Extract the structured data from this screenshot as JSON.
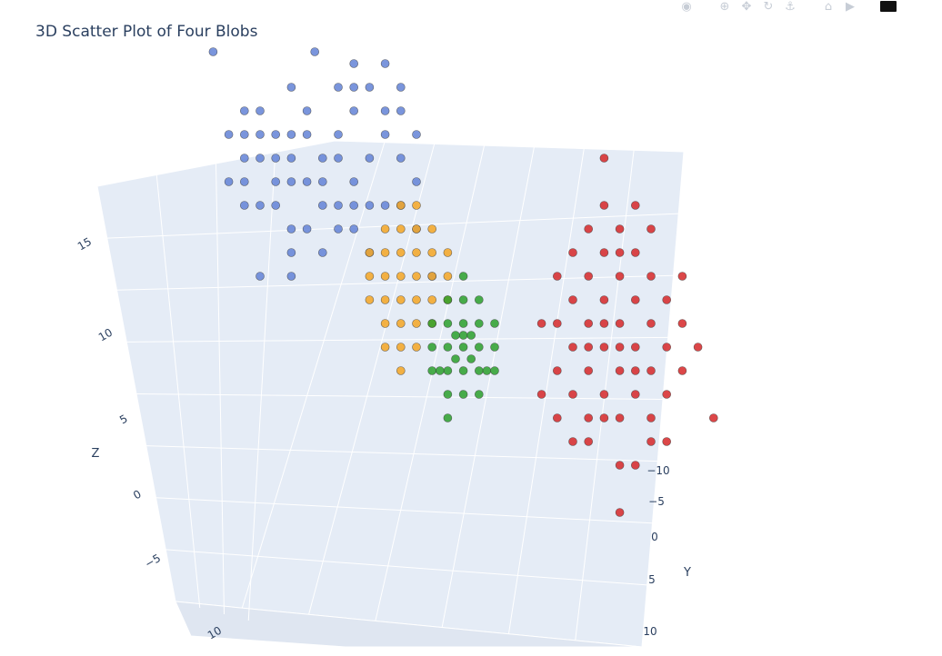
{
  "chart_data": {
    "type": "scatter3d",
    "title": "3D Scatter Plot of Four Blobs",
    "axes": {
      "x": {
        "label": "",
        "ticks": [
          "10"
        ]
      },
      "y": {
        "label": "Y",
        "ticks": [
          "−10",
          "−5",
          "0",
          "5",
          "10"
        ]
      },
      "z": {
        "label": "Z",
        "ticks": [
          "15",
          "10",
          "5",
          "0",
          "−5"
        ]
      }
    },
    "scene_background": "#e5ecf6",
    "series": [
      {
        "color": "#6382d6",
        "points": [
          [
            -1,
            14
          ],
          [
            -4,
            11
          ],
          [
            -2,
            12
          ],
          [
            -3,
            12
          ],
          [
            -6,
            15.5
          ],
          [
            -5,
            12
          ],
          [
            -3,
            13
          ],
          [
            -1,
            10
          ],
          [
            -2,
            11
          ],
          [
            -1,
            12
          ],
          [
            -4,
            13
          ],
          [
            -3,
            11
          ],
          [
            -2,
            9
          ],
          [
            -4,
            9
          ],
          [
            0,
            12
          ],
          [
            1,
            11
          ],
          [
            2,
            12
          ],
          [
            3,
            14
          ],
          [
            4,
            14
          ],
          [
            5,
            13
          ],
          [
            0,
            13
          ],
          [
            3,
            13
          ],
          [
            4,
            11
          ],
          [
            6,
            11
          ],
          [
            5,
            12
          ],
          [
            5,
            9
          ],
          [
            2,
            9
          ],
          [
            3,
            10
          ],
          [
            6,
            13
          ],
          [
            7,
            10
          ],
          [
            1,
            10
          ],
          [
            -5,
            10
          ],
          [
            -3,
            9
          ],
          [
            0,
            10
          ],
          [
            1,
            9
          ],
          [
            7,
            12
          ],
          [
            3,
            15
          ],
          [
            0.5,
            15.5
          ],
          [
            2,
            11
          ],
          [
            4,
            9
          ],
          [
            6,
            9
          ],
          [
            8,
            6
          ],
          [
            -3,
            6
          ],
          [
            -1,
            6
          ],
          [
            -4,
            10
          ],
          [
            -2,
            10
          ],
          [
            -1,
            8
          ],
          [
            0,
            8
          ],
          [
            2,
            8
          ],
          [
            3,
            8
          ],
          [
            -1,
            7
          ],
          [
            1,
            7
          ],
          [
            4,
            7
          ],
          [
            7,
            8
          ],
          [
            3,
            9
          ],
          [
            6,
            14
          ],
          [
            5,
            15
          ],
          [
            -4,
            12
          ],
          [
            -1,
            11
          ],
          [
            2,
            14
          ]
        ]
      },
      {
        "color": "#f5a623",
        "points": [
          [
            5,
            6
          ],
          [
            6,
            5
          ],
          [
            6,
            7
          ],
          [
            7,
            6
          ],
          [
            7,
            5
          ],
          [
            5,
            5
          ],
          [
            6,
            4
          ],
          [
            7,
            4
          ],
          [
            8,
            5
          ],
          [
            8,
            7
          ],
          [
            5,
            7
          ],
          [
            6,
            8
          ],
          [
            7,
            8
          ],
          [
            4,
            5
          ],
          [
            5,
            4
          ],
          [
            8,
            6
          ],
          [
            9,
            6
          ],
          [
            6,
            6
          ],
          [
            7,
            7
          ],
          [
            8,
            4
          ],
          [
            4,
            6
          ],
          [
            5,
            3
          ],
          [
            6,
            3
          ],
          [
            9,
            5
          ],
          [
            7,
            3
          ],
          [
            8,
            8
          ],
          [
            6,
            9
          ],
          [
            5,
            8
          ],
          [
            7,
            9
          ],
          [
            4,
            7
          ],
          [
            9,
            7
          ],
          [
            6,
            2
          ]
        ]
      },
      {
        "color": "#2ca02c",
        "points": [
          [
            9,
            3
          ],
          [
            10,
            3
          ],
          [
            10,
            4
          ],
          [
            11,
            3
          ],
          [
            9,
            4
          ],
          [
            10,
            2
          ],
          [
            11,
            4
          ],
          [
            9,
            2
          ],
          [
            10,
            5
          ],
          [
            8,
            3
          ],
          [
            11,
            2
          ],
          [
            12,
            3
          ],
          [
            10,
            1
          ],
          [
            8,
            4
          ],
          [
            9,
            5
          ],
          [
            11,
            5
          ],
          [
            12,
            4
          ],
          [
            10,
            3.5
          ],
          [
            9.5,
            2.5
          ],
          [
            10.5,
            2.5
          ],
          [
            9.5,
            3.5
          ],
          [
            10.5,
            3.5
          ],
          [
            8.5,
            2
          ],
          [
            11.5,
            2
          ],
          [
            9,
            1
          ],
          [
            11,
            1
          ],
          [
            12,
            2
          ],
          [
            8,
            2
          ],
          [
            10,
            6
          ],
          [
            9,
            0
          ]
        ]
      },
      {
        "color": "#d62728",
        "points": [
          [
            17,
            3
          ],
          [
            18,
            4
          ],
          [
            19,
            3
          ],
          [
            20,
            4
          ],
          [
            21,
            3
          ],
          [
            18,
            2
          ],
          [
            19,
            1
          ],
          [
            20,
            2
          ],
          [
            22,
            4
          ],
          [
            21,
            5
          ],
          [
            19,
            5
          ],
          [
            18,
            6
          ],
          [
            20,
            6
          ],
          [
            17,
            5
          ],
          [
            16,
            4
          ],
          [
            22,
            2
          ],
          [
            23,
            3
          ],
          [
            19,
            0
          ],
          [
            20,
            0
          ],
          [
            21,
            1
          ],
          [
            18,
            0
          ],
          [
            17,
            1
          ],
          [
            22,
            0
          ],
          [
            24,
            2
          ],
          [
            16,
            2
          ],
          [
            19,
            7
          ],
          [
            20,
            8
          ],
          [
            21,
            7
          ],
          [
            22,
            6
          ],
          [
            23,
            5
          ],
          [
            24,
            4
          ],
          [
            17,
            7
          ],
          [
            18,
            8
          ],
          [
            19,
            9
          ],
          [
            20,
            7
          ],
          [
            18,
            3
          ],
          [
            19,
            4
          ],
          [
            20,
            3
          ],
          [
            21,
            2
          ],
          [
            16,
            6
          ],
          [
            15,
            4
          ],
          [
            16,
            0
          ],
          [
            20,
            -2
          ],
          [
            21,
            -2
          ],
          [
            23,
            1
          ],
          [
            22,
            8
          ],
          [
            21,
            9
          ],
          [
            19,
            11
          ],
          [
            24,
            6
          ],
          [
            25,
            3
          ],
          [
            18,
            -1
          ],
          [
            17,
            -1
          ],
          [
            20,
            -4
          ],
          [
            15,
            1
          ],
          [
            26,
            0
          ],
          [
            22,
            -1
          ],
          [
            23,
            -1
          ]
        ]
      }
    ]
  },
  "modebar": {
    "icons": [
      "camera-icon",
      "zoom-icon",
      "pan-icon",
      "orbit-icon",
      "turntable-icon",
      "home-icon",
      "camera-view-icon"
    ],
    "glyphs": [
      "◉",
      "⊕",
      "✥",
      "↻",
      "⚓",
      "⌂",
      "▶"
    ]
  }
}
